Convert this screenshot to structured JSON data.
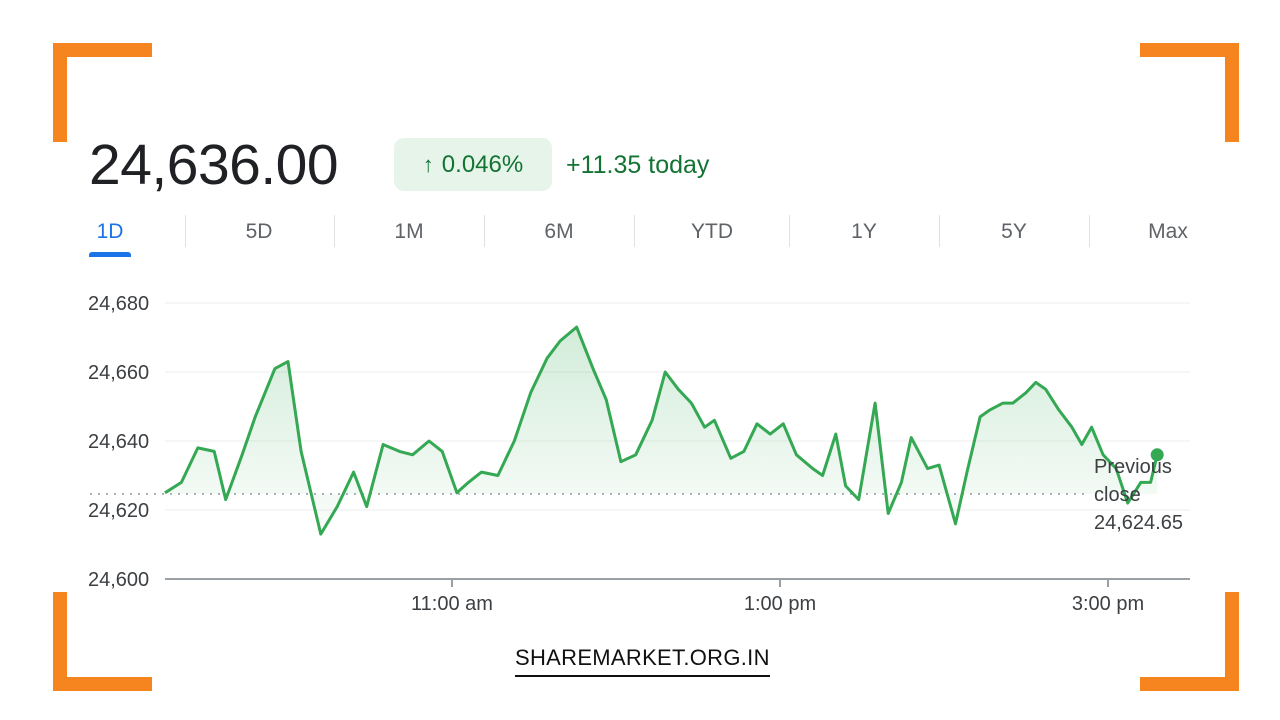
{
  "header": {
    "price": "24,636.00",
    "change_percent": "0.046%",
    "change_today": "+11.35 today",
    "arrow_icon": "arrow-up-icon"
  },
  "tabs": [
    {
      "label": "1D",
      "active": true
    },
    {
      "label": "5D",
      "active": false
    },
    {
      "label": "1M",
      "active": false
    },
    {
      "label": "6M",
      "active": false
    },
    {
      "label": "YTD",
      "active": false
    },
    {
      "label": "1Y",
      "active": false
    },
    {
      "label": "5Y",
      "active": false
    },
    {
      "label": "Max",
      "active": false
    }
  ],
  "colors": {
    "accent": "#1a73e8",
    "positive": "#34a853",
    "positive_text": "#137333",
    "badge_bg": "#e6f4ea",
    "frame": "#f7851f"
  },
  "chart_data": {
    "type": "line",
    "ylim": [
      24600,
      24680
    ],
    "yticks": [
      24600,
      24620,
      24640,
      24660,
      24680
    ],
    "ytick_labels": [
      "24,600",
      "24,620",
      "24,640",
      "24,660",
      "24,680"
    ],
    "xlim": [
      9.25,
      15.5
    ],
    "xticks": [
      11,
      13,
      15
    ],
    "xtick_labels": [
      "11:00 am",
      "1:00 pm",
      "3:00 pm"
    ],
    "grid": true,
    "previous_close": 24624.65,
    "previous_close_label_lines": [
      "Previous",
      "close",
      "24,624.65"
    ],
    "x": [
      9.25,
      9.35,
      9.45,
      9.55,
      9.62,
      9.72,
      9.8,
      9.92,
      10.0,
      10.08,
      10.2,
      10.3,
      10.4,
      10.48,
      10.58,
      10.68,
      10.76,
      10.86,
      10.94,
      11.03,
      11.1,
      11.18,
      11.28,
      11.38,
      11.48,
      11.58,
      11.66,
      11.76,
      11.86,
      11.94,
      12.03,
      12.12,
      12.22,
      12.3,
      12.38,
      12.46,
      12.54,
      12.6,
      12.7,
      12.78,
      12.86,
      12.94,
      13.02,
      13.1,
      13.2,
      13.26,
      13.34,
      13.4,
      13.48,
      13.58,
      13.66,
      13.74,
      13.8,
      13.9,
      13.97,
      14.07,
      14.14,
      14.22,
      14.28,
      14.36,
      14.42,
      14.5,
      14.56,
      14.62,
      14.7,
      14.78,
      14.84,
      14.9,
      14.97,
      15.05,
      15.12,
      15.2,
      15.26,
      15.3
    ],
    "values": [
      24625,
      24628,
      24638,
      24637,
      24623,
      24636,
      24647,
      24661,
      24663,
      24637,
      24613,
      24621,
      24631,
      24621,
      24639,
      24637,
      24636,
      24640,
      24637,
      24625,
      24628,
      24631,
      24630,
      24640,
      24654,
      24664,
      24669,
      24673,
      24661,
      24652,
      24634,
      24636,
      24646,
      24660,
      24655,
      24651,
      24644,
      24646,
      24635,
      24637,
      24645,
      24642,
      24645,
      24636,
      24632,
      24630,
      24642,
      24627,
      24623,
      24651,
      24619,
      24628,
      24641,
      24632,
      24633,
      24616,
      24631,
      24647,
      24649,
      24651,
      24651,
      24654,
      24657,
      24655,
      24649,
      24644,
      24639,
      24644,
      24636,
      24632,
      24622,
      24628,
      24628,
      24636
    ]
  },
  "footer": {
    "site": "SHAREMARKET.ORG.IN"
  }
}
